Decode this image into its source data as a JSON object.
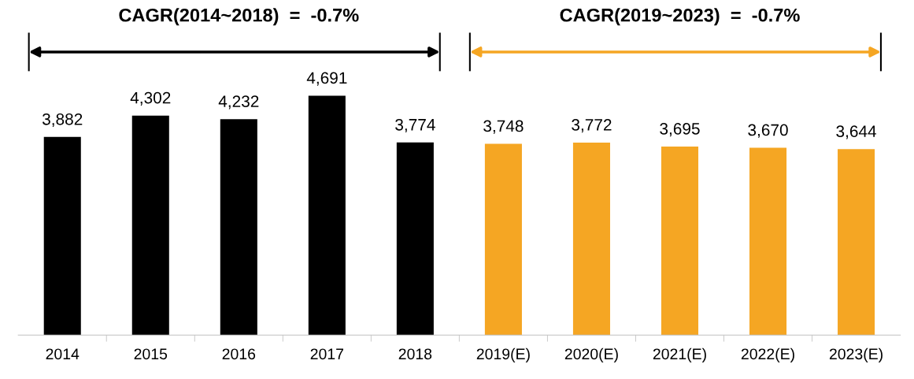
{
  "chart_data": {
    "type": "bar",
    "categories": [
      "2014",
      "2015",
      "2016",
      "2017",
      "2018",
      "2019(E)",
      "2020(E)",
      "2021(E)",
      "2022(E)",
      "2023(E)"
    ],
    "values": [
      3882,
      4302,
      4232,
      4691,
      3774,
      3748,
      3772,
      3695,
      3670,
      3644
    ],
    "colors": [
      "#000000",
      "#000000",
      "#000000",
      "#000000",
      "#000000",
      "#f5a623",
      "#f5a623",
      "#f5a623",
      "#f5a623",
      "#f5a623"
    ],
    "value_labels": [
      "3,882",
      "4,302",
      "4,232",
      "4,691",
      "3,774",
      "3,748",
      "3,772",
      "3,695",
      "3,670",
      "3,644"
    ],
    "grid": false,
    "legend": false,
    "annotations": [
      "CAGR(2014~2018)  =  -0.7%",
      "CAGR(2019~2023)  =  -0.7%"
    ]
  }
}
